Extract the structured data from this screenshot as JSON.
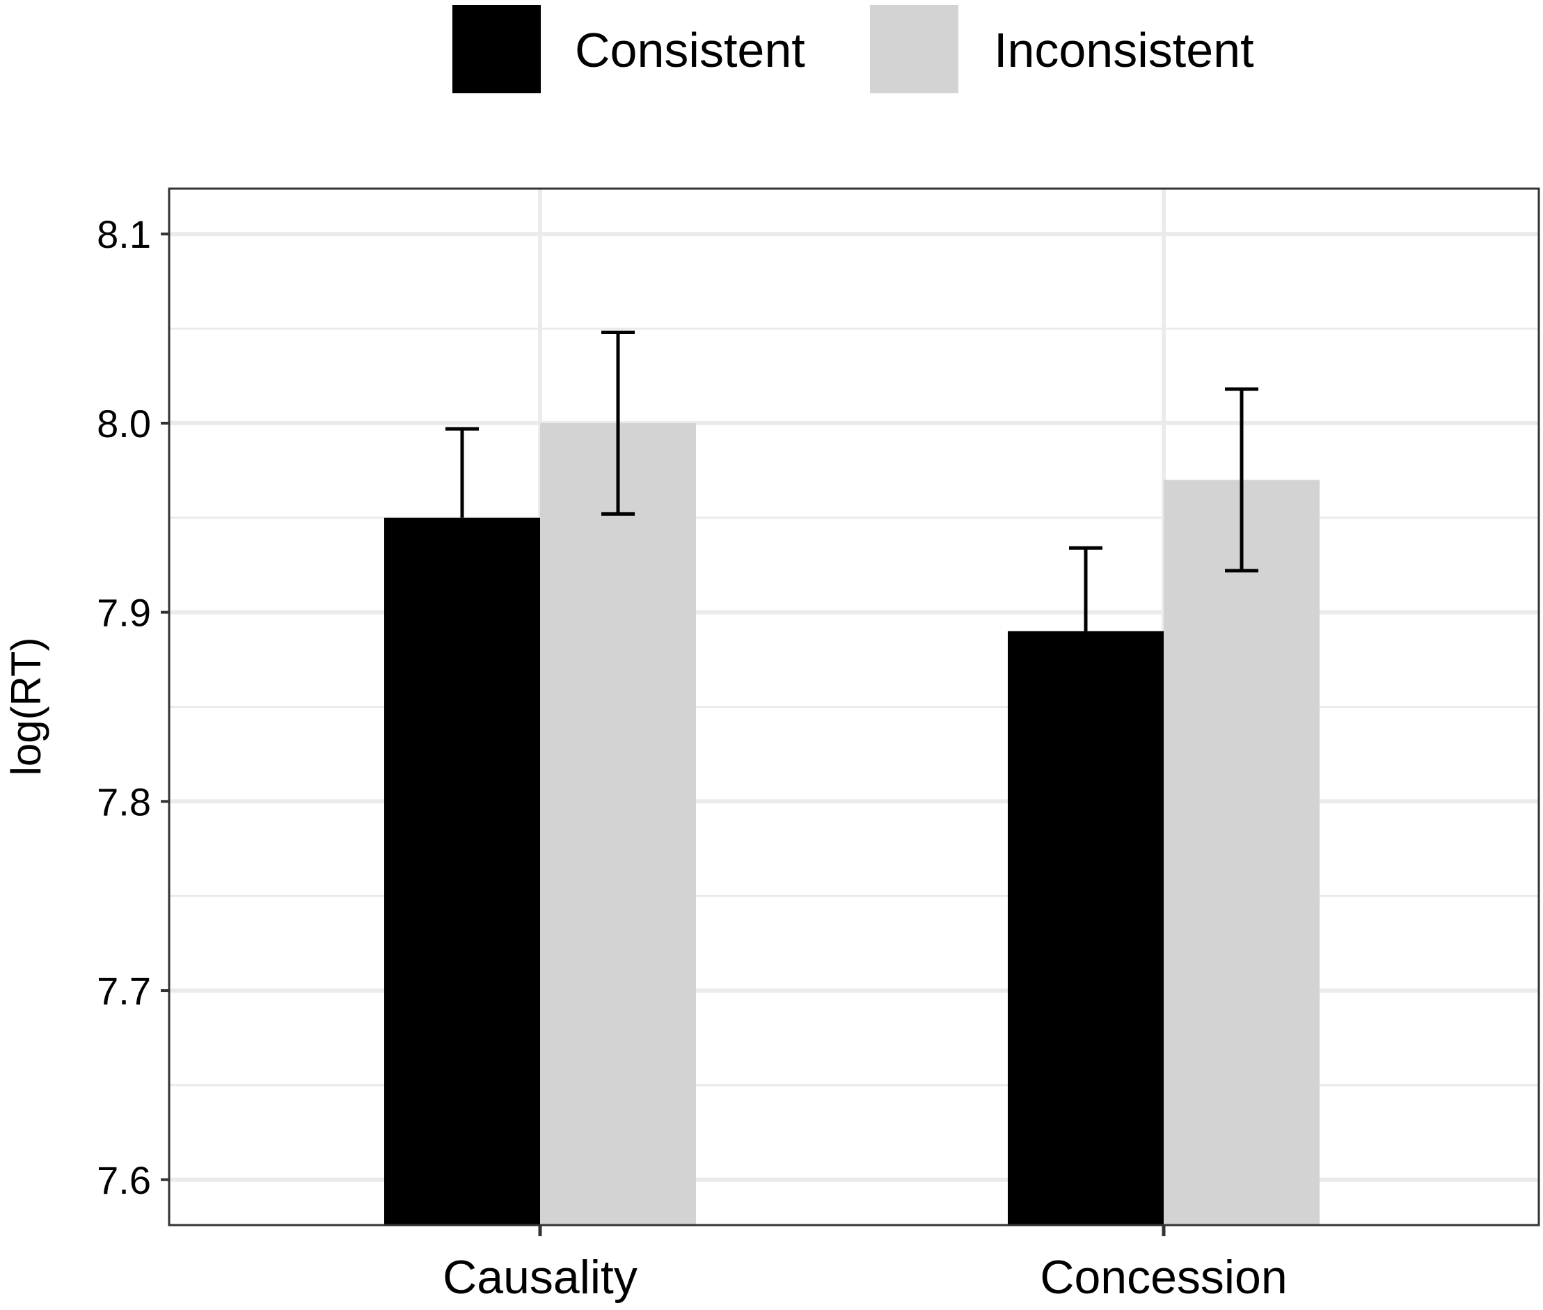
{
  "chart_data": {
    "type": "bar",
    "title": "",
    "xlabel": "",
    "ylabel": "log(RT)",
    "ylim": [
      7.576,
      8.124
    ],
    "yticks": [
      "7.6",
      "7.7",
      "7.8",
      "7.9",
      "8.0",
      "8.1"
    ],
    "grid": true,
    "legend_position": "top",
    "categories": [
      "Causality",
      "Concession"
    ],
    "series": [
      {
        "name": "Consistent",
        "color": "#000000",
        "values": [
          7.95,
          7.89
        ],
        "error_low": [
          7.95,
          7.89
        ],
        "error_high": [
          7.997,
          7.934
        ]
      },
      {
        "name": "Inconsistent",
        "color": "#d3d3d3",
        "values": [
          8.0,
          7.97
        ],
        "error_low": [
          7.952,
          7.922
        ],
        "error_high": [
          8.048,
          8.018
        ]
      }
    ]
  }
}
